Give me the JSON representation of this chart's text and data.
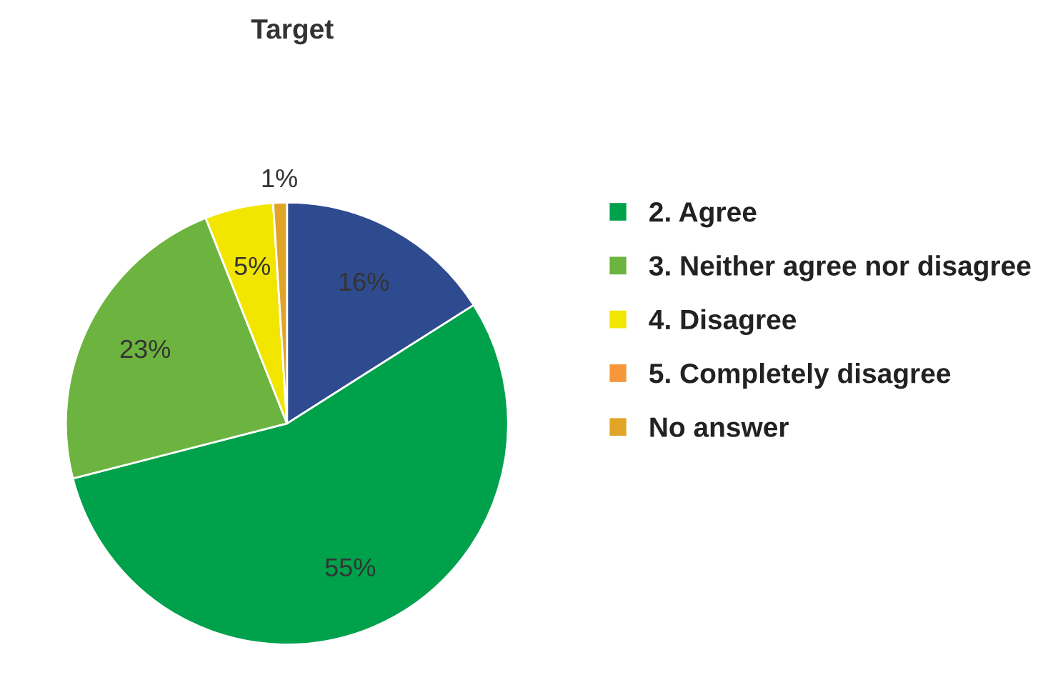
{
  "chart_data": {
    "type": "pie",
    "title": "Target",
    "categories": [
      null,
      "2. Agree",
      "3. Neither agree nor disagree",
      "4. Disagree",
      "5. Completely disagree",
      "No answer"
    ],
    "values": [
      16,
      55,
      23,
      5,
      0,
      1
    ],
    "colors": [
      "#2f4b8f",
      "#00a14b",
      "#6db33f",
      "#f2e500",
      "#f7963a",
      "#e0a526"
    ],
    "value_labels": [
      "16%",
      "55%",
      "23%",
      "5%",
      null,
      "1%"
    ],
    "legend": "right"
  }
}
